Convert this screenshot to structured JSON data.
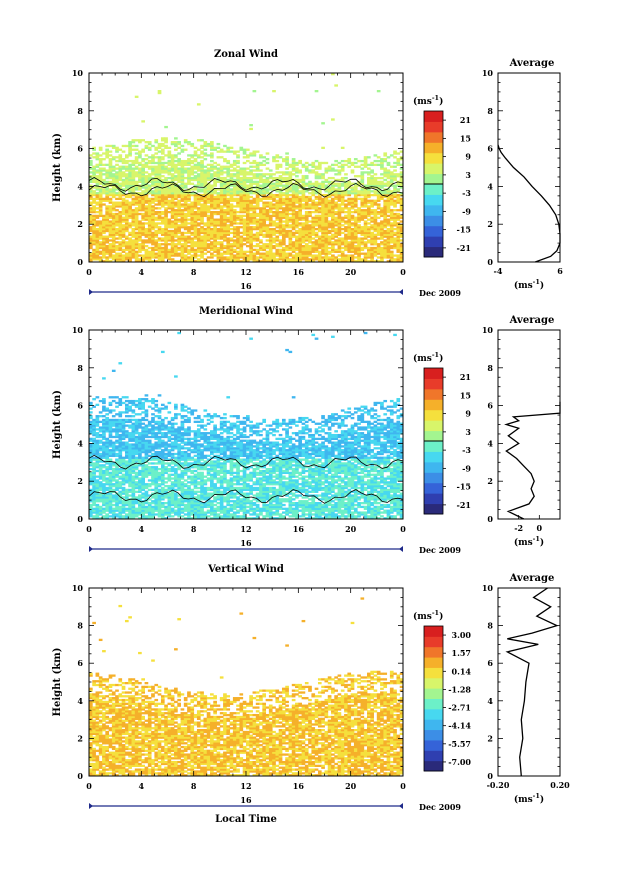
{
  "figure": {
    "xlabel": "Local Time",
    "date_label": "Dec 2009",
    "day_label": "16",
    "ylabel": "Height (km)",
    "average_title": "Average",
    "unit_label": "(ms",
    "unit_exp": "-1",
    "unit_close": ")",
    "colormap": [
      "#2a2a7a",
      "#2f3fb0",
      "#3563d8",
      "#3c8ee6",
      "#3fb6ef",
      "#47d8f0",
      "#6cf0c8",
      "#a3f590",
      "#d8f56a",
      "#f5e03d",
      "#f5b02a",
      "#f0762a",
      "#e83c2a",
      "#d81f1f"
    ]
  },
  "chart_data": [
    {
      "type": "heatmap",
      "title": "Zonal Wind",
      "xlabel": "Local Time",
      "ylabel": "Height (km)",
      "xlim": [
        0,
        24
      ],
      "ylim": [
        0,
        10
      ],
      "x_ticks": [
        "0",
        "4",
        "8",
        "12",
        "16",
        "20",
        "0"
      ],
      "y_ticks": [
        "0",
        "2",
        "4",
        "6",
        "8",
        "10"
      ],
      "colorbar": {
        "unit": "ms-1",
        "ticks": [
          "21",
          "15",
          "9",
          "3",
          "-3",
          "-9",
          "-15",
          "-21"
        ],
        "range": [
          -24,
          24
        ]
      },
      "data_top_km": 6.0,
      "typical_value": 10,
      "contour_km": [
        3.8,
        4.1
      ],
      "average_profile": {
        "xlim": [
          -4,
          6
        ],
        "x_ticks": [
          "-4",
          "6"
        ],
        "y_ticks": [
          "0",
          "2",
          "4",
          "6",
          "8",
          "10"
        ],
        "height_km": [
          0.0,
          0.3,
          0.6,
          1.0,
          1.5,
          2.0,
          2.5,
          3.0,
          3.5,
          4.0,
          4.5,
          5.0,
          5.5,
          5.8,
          6.0,
          6.2
        ],
        "values": [
          2.0,
          4.5,
          5.5,
          6.0,
          6.0,
          5.8,
          5.3,
          4.3,
          3.0,
          1.5,
          0.2,
          -1.5,
          -2.8,
          -3.5,
          -3.8,
          -4.0
        ]
      }
    },
    {
      "type": "heatmap",
      "title": "Meridional Wind",
      "xlabel": "Local Time",
      "ylabel": "Height (km)",
      "xlim": [
        0,
        24
      ],
      "ylim": [
        0,
        10
      ],
      "x_ticks": [
        "0",
        "4",
        "8",
        "12",
        "16",
        "20",
        "0"
      ],
      "y_ticks": [
        "0",
        "2",
        "4",
        "6",
        "8",
        "10"
      ],
      "colorbar": {
        "unit": "ms-1",
        "ticks": [
          "21",
          "15",
          "9",
          "3",
          "-3",
          "-9",
          "-15",
          "-21"
        ],
        "range": [
          -24,
          24
        ]
      },
      "data_top_km": 5.9,
      "typical_value": -3,
      "contour_km": [
        1.2,
        3.0
      ],
      "average_profile": {
        "xlim": [
          -4,
          2
        ],
        "x_ticks": [
          "-2",
          "0"
        ],
        "y_ticks": [
          "0",
          "2",
          "4",
          "6",
          "8",
          "10"
        ],
        "height_km": [
          0.0,
          0.4,
          0.8,
          1.2,
          1.6,
          2.0,
          2.4,
          2.8,
          3.2,
          3.6,
          4.0,
          4.4,
          4.8,
          5.0,
          5.2,
          5.4,
          5.6,
          6.2
        ],
        "values": [
          -1.5,
          -3.0,
          -1.0,
          -0.5,
          -0.8,
          -0.5,
          -0.8,
          -1.5,
          -2.2,
          -3.2,
          -2.0,
          -3.0,
          -2.0,
          -3.2,
          -2.0,
          -2.5,
          2.0,
          2.0
        ]
      }
    },
    {
      "type": "heatmap",
      "title": "Vertical Wind",
      "xlabel": "Local Time",
      "ylabel": "Height (km)",
      "xlim": [
        0,
        24
      ],
      "ylim": [
        0,
        10
      ],
      "x_ticks": [
        "0",
        "4",
        "8",
        "12",
        "16",
        "20",
        "0"
      ],
      "y_ticks": [
        "0",
        "2",
        "4",
        "6",
        "8",
        "10"
      ],
      "colorbar": {
        "unit": "ms-1",
        "ticks": [
          "3.00",
          "1.57",
          "0.14",
          "-1.28",
          "-2.71",
          "-4.14",
          "-5.57",
          "-7.00"
        ],
        "range": [
          -7.5,
          3.5
        ]
      },
      "data_top_km": 5.0,
      "typical_value": 0.4,
      "contour_km": [],
      "average_profile": {
        "xlim": [
          -0.2,
          0.2
        ],
        "x_ticks": [
          "-0.20",
          "0.20"
        ],
        "y_ticks": [
          "0",
          "2",
          "4",
          "6",
          "8",
          "10"
        ],
        "height_km": [
          0.0,
          1.0,
          2.0,
          3.0,
          4.0,
          5.0,
          6.0,
          6.6,
          7.0,
          7.3,
          7.6,
          8.0,
          8.5,
          9.0,
          9.5,
          10.0
        ],
        "values": [
          -0.05,
          -0.06,
          -0.04,
          -0.05,
          -0.03,
          -0.02,
          0.0,
          -0.14,
          0.06,
          -0.14,
          0.02,
          0.18,
          0.05,
          0.14,
          0.03,
          0.12
        ]
      }
    }
  ]
}
